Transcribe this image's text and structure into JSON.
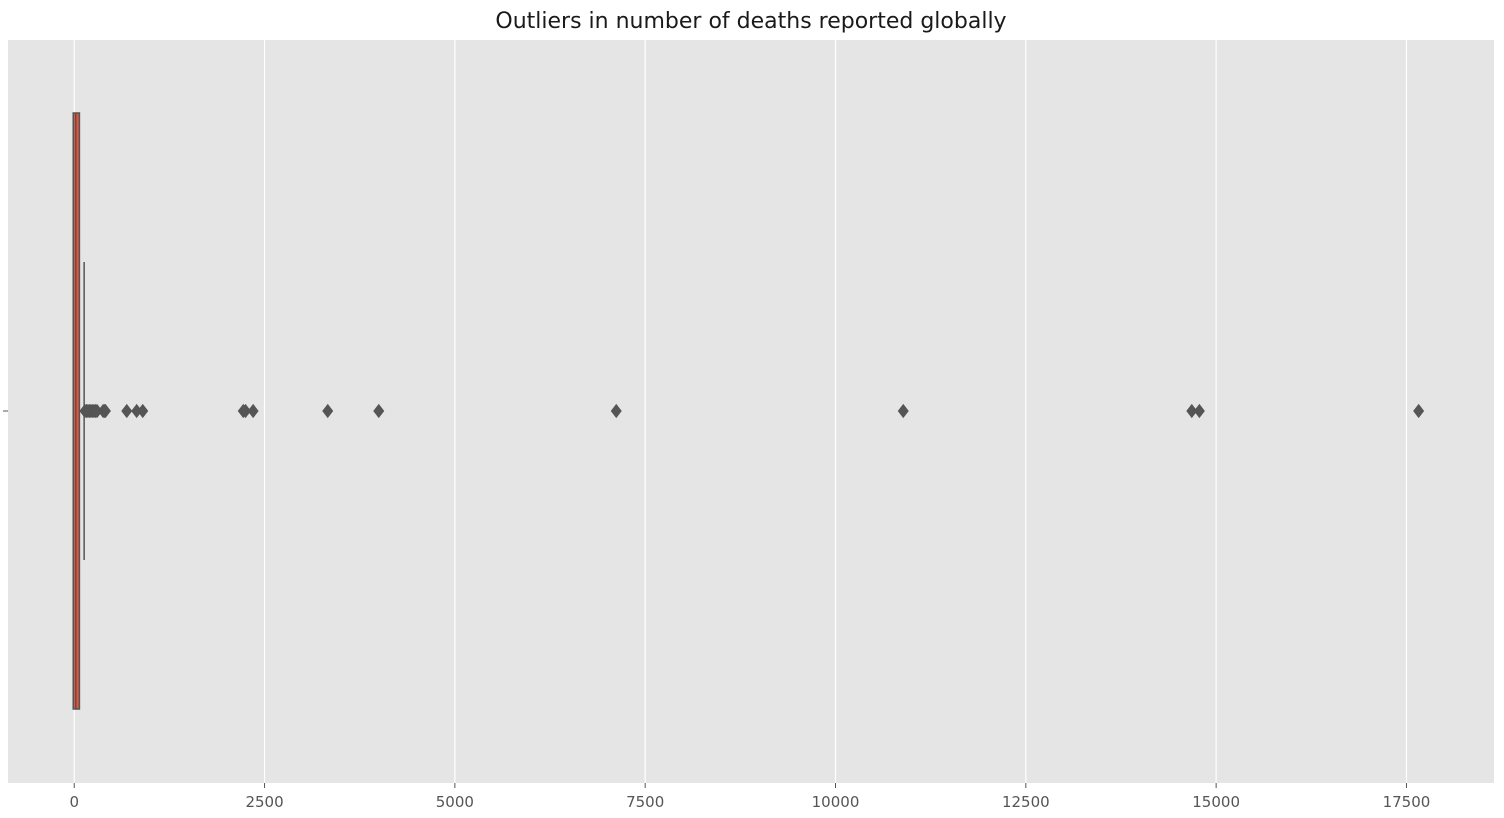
{
  "chart_data": {
    "type": "box",
    "title": "Outliers in number of deaths reported globally",
    "xlabel": "",
    "ylabel": "",
    "xlim": [
      -870,
      18650
    ],
    "x_ticks": [
      0,
      2500,
      5000,
      7500,
      10000,
      12500,
      15000,
      17500
    ],
    "x_tick_labels": [
      "0",
      "2500",
      "5000",
      "7500",
      "10000",
      "12500",
      "15000",
      "17500"
    ],
    "grid": true,
    "box": {
      "q1": 0,
      "median": 20,
      "q3": 55,
      "whisker_low": 0,
      "whisker_high": 130,
      "color": "#e5533d"
    },
    "outliers": [
      140,
      160,
      180,
      200,
      220,
      240,
      260,
      280,
      300,
      380,
      400,
      410,
      690,
      820,
      900,
      2220,
      2250,
      2350,
      3330,
      4000,
      7120,
      10890,
      14680,
      14780,
      17660
    ],
    "colors": {
      "plot_bg": "#e5e5e5",
      "grid": "#ffffff",
      "box_edge": "#555555",
      "outlier": "#555555"
    }
  }
}
